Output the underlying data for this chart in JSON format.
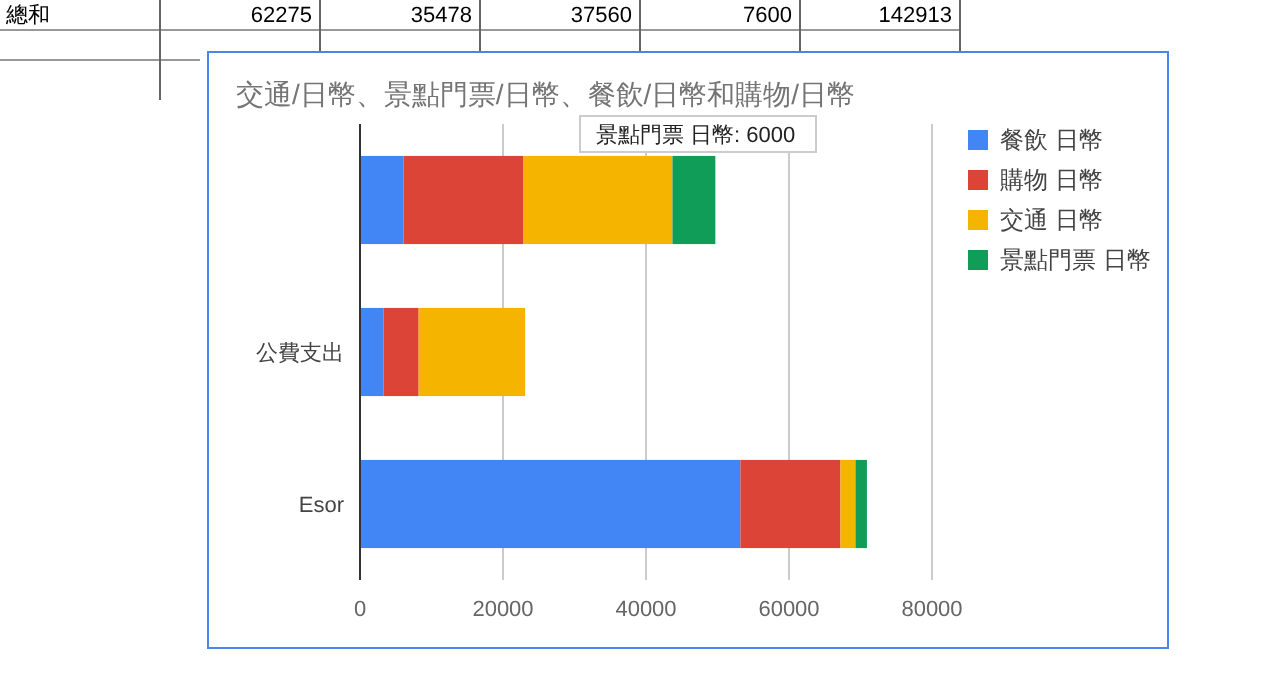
{
  "chart_data": {
    "type": "bar",
    "orientation": "horizontal",
    "stacked": true,
    "title": "交通/日幣、景點門票/日幣、餐飲/日幣和購物/日幣",
    "categories": [
      null,
      "公費支出",
      "Esor"
    ],
    "series": [
      {
        "name": "餐飲 日幣",
        "color": "#4285f4",
        "values": [
          6100,
          3300,
          53200
        ]
      },
      {
        "name": "購物 日幣",
        "color": "#db4437",
        "values": [
          16700,
          4900,
          14000
        ]
      },
      {
        "name": "交通 日幣",
        "color": "#f4b400",
        "values": [
          20900,
          14900,
          2100
        ]
      },
      {
        "name": "景點門票 日幣",
        "color": "#0f9d58",
        "values": [
          6000,
          0,
          1600
        ]
      }
    ],
    "xlim": [
      0,
      80000
    ],
    "xticks": [
      0,
      20000,
      40000,
      60000,
      80000
    ],
    "grid": "x",
    "legend": "right",
    "annotations": [
      "總和",
      "62275",
      "35478",
      "37560",
      "7600",
      "142913",
      "景點門票 日幣: 6000"
    ]
  }
}
